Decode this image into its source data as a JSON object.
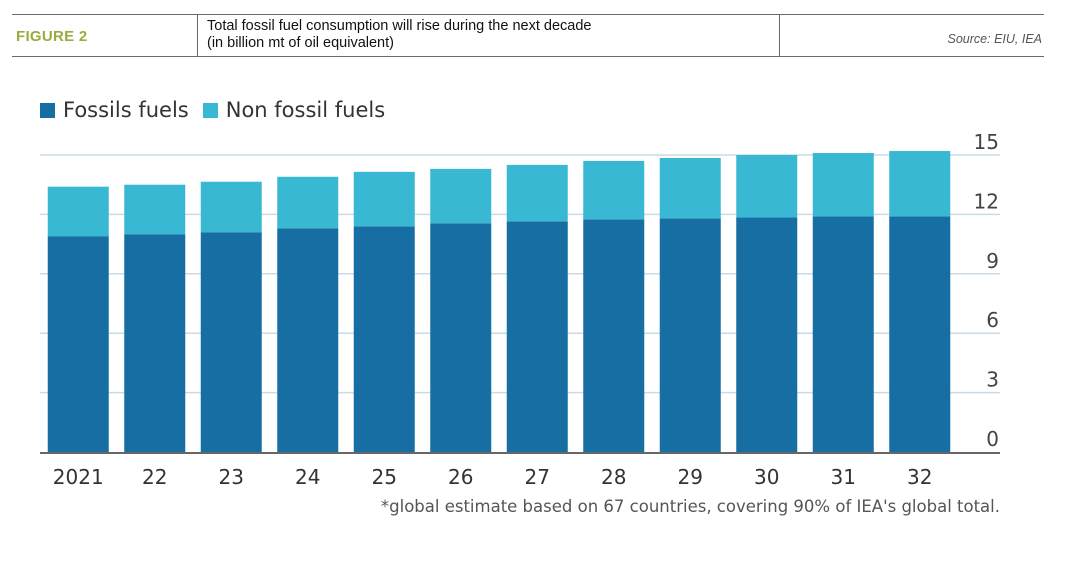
{
  "header": {
    "figure_label": "FIGURE 2",
    "title_line1": "Total fossil fuel consumption will rise during the next decade",
    "title_line2": "(in billion mt of oil equivalent)",
    "source": "Source: EIU, IEA"
  },
  "legend": {
    "items": [
      {
        "label": "Fossils fuels",
        "color": "#176ea3"
      },
      {
        "label": "Non fossil fuels",
        "color": "#39b8d3"
      }
    ]
  },
  "footnote": "*global estimate based on 67 countries, covering 90% of IEA's global total.",
  "chart_data": {
    "type": "bar",
    "stacked": true,
    "categories": [
      "2021",
      "22",
      "23",
      "24",
      "25",
      "26",
      "27",
      "28",
      "29",
      "30",
      "31",
      "32"
    ],
    "series": [
      {
        "name": "Fossils fuels",
        "color": "#176ea3",
        "values": [
          10.9,
          11.0,
          11.1,
          11.3,
          11.4,
          11.55,
          11.65,
          11.75,
          11.8,
          11.85,
          11.9,
          11.9
        ]
      },
      {
        "name": "Non fossil fuels",
        "color": "#39b8d3",
        "values": [
          2.5,
          2.5,
          2.55,
          2.6,
          2.75,
          2.75,
          2.85,
          2.95,
          3.05,
          3.15,
          3.2,
          3.3
        ]
      }
    ],
    "yticks": [
      0,
      3,
      6,
      9,
      12,
      15
    ],
    "ylim": [
      0,
      15
    ],
    "y_axis_side": "right",
    "grid": true,
    "legend_position": "top-left"
  }
}
